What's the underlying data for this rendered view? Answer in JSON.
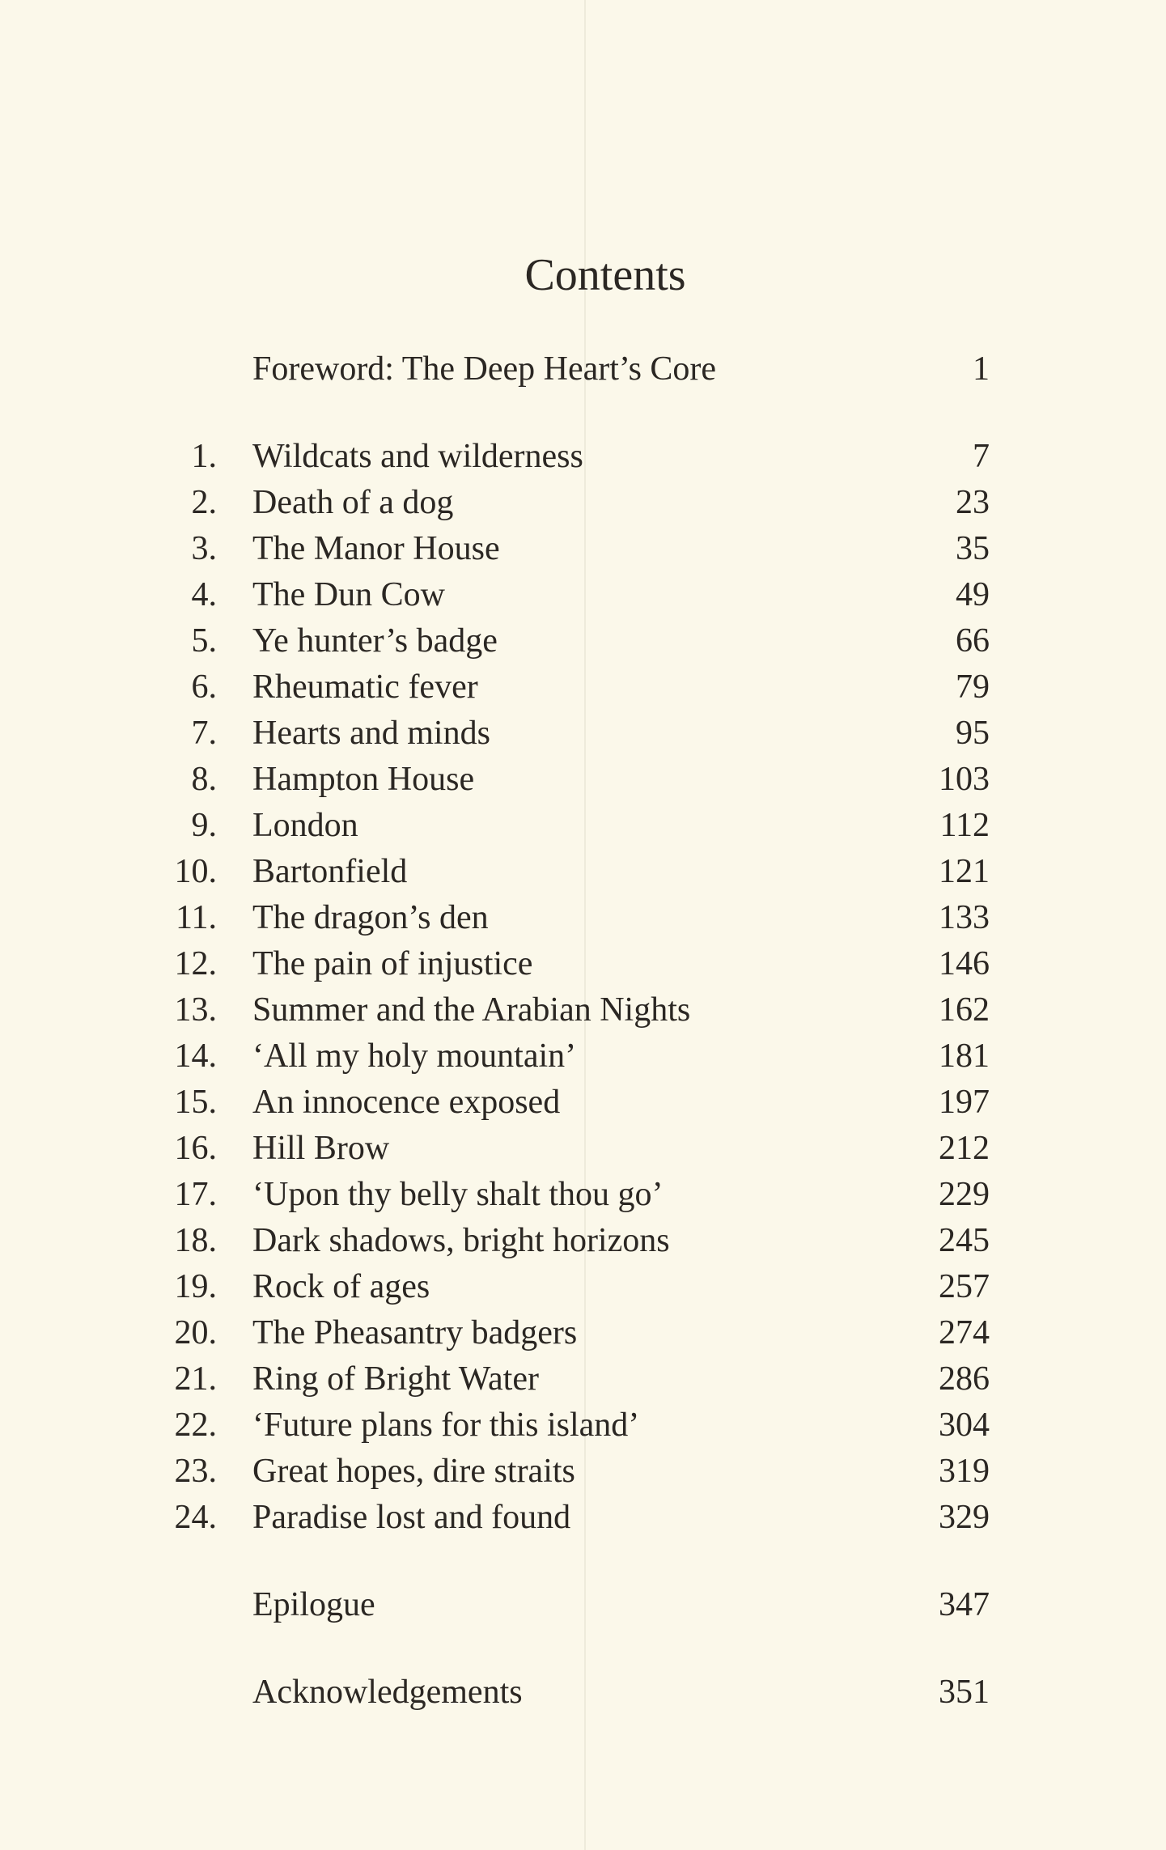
{
  "title": "Contents",
  "foreword": {
    "title": "Foreword: The Deep Heart’s Core",
    "page": "1"
  },
  "chapters": [
    {
      "num": "1.",
      "title": "Wildcats and wilderness",
      "page": "7"
    },
    {
      "num": "2.",
      "title": "Death of a dog",
      "page": "23"
    },
    {
      "num": "3.",
      "title": "The Manor House",
      "page": "35"
    },
    {
      "num": "4.",
      "title": "The Dun Cow",
      "page": "49"
    },
    {
      "num": "5.",
      "title": "Ye hunter’s badge",
      "page": "66"
    },
    {
      "num": "6.",
      "title": "Rheumatic fever",
      "page": "79"
    },
    {
      "num": "7.",
      "title": "Hearts and minds",
      "page": "95"
    },
    {
      "num": "8.",
      "title": "Hampton House",
      "page": "103"
    },
    {
      "num": "9.",
      "title": "London",
      "page": "112"
    },
    {
      "num": "10.",
      "title": "Bartonfield",
      "page": "121"
    },
    {
      "num": "11.",
      "title": "The dragon’s den",
      "page": "133"
    },
    {
      "num": "12.",
      "title": "The pain of injustice",
      "page": "146"
    },
    {
      "num": "13.",
      "title": "Summer and the Arabian Nights",
      "page": "162"
    },
    {
      "num": "14.",
      "title": "‘All my holy mountain’",
      "page": "181"
    },
    {
      "num": "15.",
      "title": "An innocence exposed",
      "page": "197"
    },
    {
      "num": "16.",
      "title": "Hill Brow",
      "page": "212"
    },
    {
      "num": "17.",
      "title": "‘Upon thy belly shalt thou go’",
      "page": "229"
    },
    {
      "num": "18.",
      "title": "Dark shadows, bright horizons",
      "page": "245"
    },
    {
      "num": "19.",
      "title": "Rock of ages",
      "page": "257"
    },
    {
      "num": "20.",
      "title": "The Pheasantry badgers",
      "page": "274"
    },
    {
      "num": "21.",
      "title": "Ring of Bright Water",
      "page": "286"
    },
    {
      "num": "22.",
      "title": "‘Future plans for this island’",
      "page": "304"
    },
    {
      "num": "23.",
      "title": "Great hopes, dire straits",
      "page": "319"
    },
    {
      "num": "24.",
      "title": "Paradise lost and found",
      "page": "329"
    }
  ],
  "epilogue": {
    "title": "Epilogue",
    "page": "347"
  },
  "acknowledgements": {
    "title": "Acknowledgements",
    "page": "351"
  }
}
